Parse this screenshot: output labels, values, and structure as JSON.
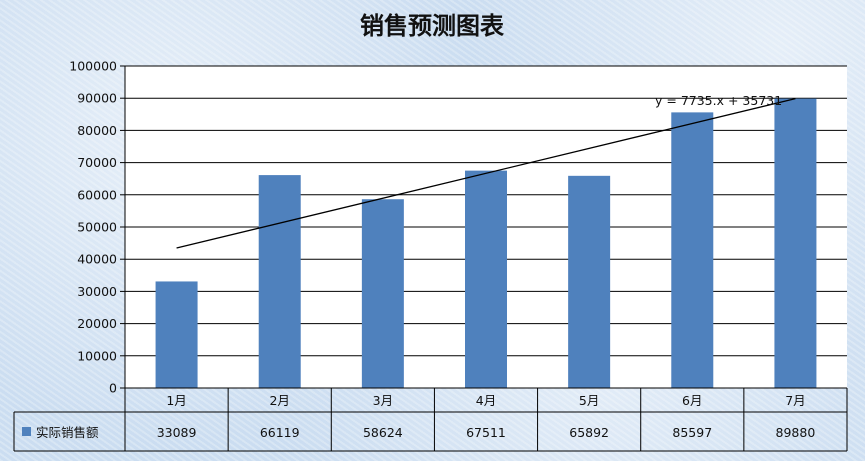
{
  "chart_data": {
    "type": "bar",
    "title": "销售预测图表",
    "categories": [
      "1月",
      "2月",
      "3月",
      "4月",
      "5月",
      "6月",
      "7月"
    ],
    "series": [
      {
        "name": "实际销售额",
        "values": [
          33089,
          66119,
          58624,
          67511,
          65892,
          85597,
          89880
        ]
      }
    ],
    "ylim": [
      0,
      100000
    ],
    "yticks": [
      0,
      10000,
      20000,
      30000,
      40000,
      50000,
      60000,
      70000,
      80000,
      90000,
      100000
    ],
    "grid": true,
    "data_table": true,
    "trendline": {
      "type": "linear",
      "slope": 7735,
      "intercept": 35731,
      "label": "y = 7735.x + 35731"
    },
    "colors": {
      "bar": "#4f81bd",
      "trendline": "#000000",
      "grid": "#000000",
      "plot_bg": "#ffffff"
    }
  }
}
